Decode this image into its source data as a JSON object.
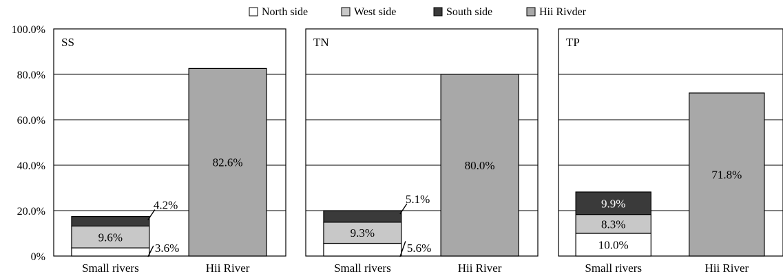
{
  "legend": [
    {
      "label": "North side",
      "color": "#ffffff"
    },
    {
      "label": "West side",
      "color": "#c8c8c8"
    },
    {
      "label": "South side",
      "color": "#3a3a3a"
    },
    {
      "label": "Hii Rivder",
      "color": "#a8a8a8"
    }
  ],
  "y_axis": {
    "ticks": [
      "100.0%",
      "80.0%",
      "60.0%",
      "40.0%",
      "20.0%",
      "0%"
    ]
  },
  "chart_data": {
    "type": "bar",
    "stacked": true,
    "ylim": [
      0,
      100
    ],
    "grid": true,
    "legend_position": "top",
    "categories": [
      "Small rivers",
      "Hii River"
    ],
    "panels": [
      {
        "title": "SS",
        "series": [
          {
            "name": "North side",
            "values": [
              3.6,
              0
            ]
          },
          {
            "name": "West side",
            "values": [
              9.6,
              0
            ]
          },
          {
            "name": "South side",
            "values": [
              4.2,
              0
            ]
          },
          {
            "name": "Hii Rivder",
            "values": [
              0,
              82.6
            ]
          }
        ],
        "labels": {
          "north": "3.6%",
          "west": "9.6%",
          "south": "4.2%",
          "hii": "82.6%"
        }
      },
      {
        "title": "TN",
        "series": [
          {
            "name": "North side",
            "values": [
              5.6,
              0
            ]
          },
          {
            "name": "West side",
            "values": [
              9.3,
              0
            ]
          },
          {
            "name": "South side",
            "values": [
              5.1,
              0
            ]
          },
          {
            "name": "Hii Rivder",
            "values": [
              0,
              80.0
            ]
          }
        ],
        "labels": {
          "north": "5.6%",
          "west": "9.3%",
          "south": "5.1%",
          "hii": "80.0%"
        }
      },
      {
        "title": "TP",
        "series": [
          {
            "name": "North side",
            "values": [
              10.0,
              0
            ]
          },
          {
            "name": "West side",
            "values": [
              8.3,
              0
            ]
          },
          {
            "name": "South side",
            "values": [
              9.9,
              0
            ]
          },
          {
            "name": "Hii Rivder",
            "values": [
              0,
              71.8
            ]
          }
        ],
        "labels": {
          "north": "10.0%",
          "west": "8.3%",
          "south": "9.9%",
          "hii": "71.8%"
        }
      }
    ]
  }
}
